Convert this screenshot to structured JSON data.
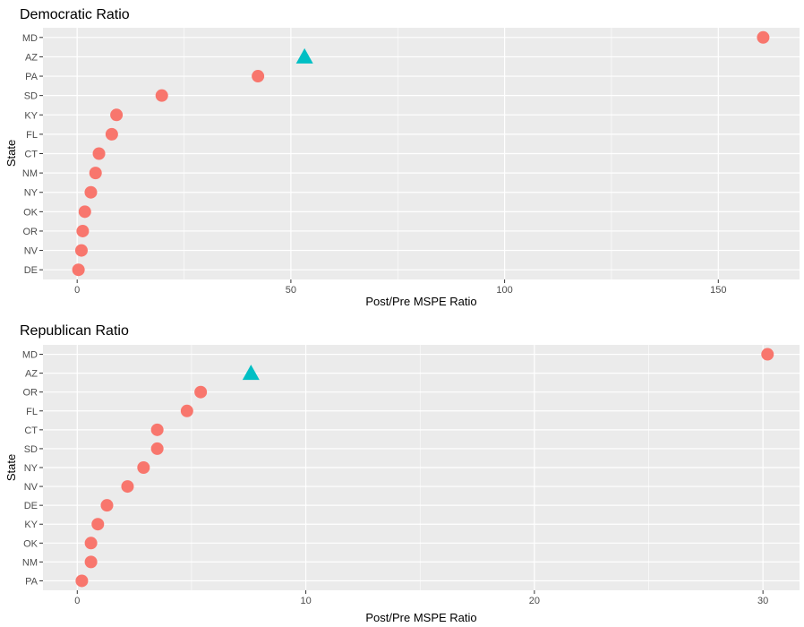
{
  "chart_data": [
    {
      "type": "scatter",
      "title": "Democratic Ratio",
      "xlabel": "Post/Pre MSPE Ratio",
      "ylabel": "State",
      "xlim": [
        -8,
        169
      ],
      "xticks": [
        0,
        50,
        100,
        150
      ],
      "grid": true,
      "legend": "none",
      "categories": [
        "MD",
        "AZ",
        "PA",
        "SD",
        "KY",
        "FL",
        "CT",
        "NM",
        "NY",
        "OK",
        "OR",
        "NV",
        "DE"
      ],
      "points": [
        {
          "state": "MD",
          "value": 160.5,
          "shape": "circle"
        },
        {
          "state": "AZ",
          "value": 53.2,
          "shape": "triangle"
        },
        {
          "state": "PA",
          "value": 42.3,
          "shape": "circle"
        },
        {
          "state": "SD",
          "value": 19.8,
          "shape": "circle"
        },
        {
          "state": "KY",
          "value": 9.2,
          "shape": "circle"
        },
        {
          "state": "FL",
          "value": 8.1,
          "shape": "circle"
        },
        {
          "state": "CT",
          "value": 5.1,
          "shape": "circle"
        },
        {
          "state": "NM",
          "value": 4.3,
          "shape": "circle"
        },
        {
          "state": "NY",
          "value": 3.2,
          "shape": "circle"
        },
        {
          "state": "OK",
          "value": 1.8,
          "shape": "circle"
        },
        {
          "state": "OR",
          "value": 1.3,
          "shape": "circle"
        },
        {
          "state": "NV",
          "value": 1.0,
          "shape": "circle"
        },
        {
          "state": "DE",
          "value": 0.3,
          "shape": "circle"
        }
      ]
    },
    {
      "type": "scatter",
      "title": "Republican Ratio",
      "xlabel": "Post/Pre MSPE Ratio",
      "ylabel": "State",
      "xlim": [
        -1.5,
        31.6
      ],
      "xticks": [
        0,
        10,
        20,
        30
      ],
      "grid": true,
      "legend": "none",
      "categories": [
        "MD",
        "AZ",
        "OR",
        "FL",
        "CT",
        "SD",
        "NY",
        "NV",
        "DE",
        "KY",
        "OK",
        "NM",
        "PA"
      ],
      "points": [
        {
          "state": "MD",
          "value": 30.2,
          "shape": "circle"
        },
        {
          "state": "AZ",
          "value": 7.6,
          "shape": "triangle"
        },
        {
          "state": "OR",
          "value": 5.4,
          "shape": "circle"
        },
        {
          "state": "FL",
          "value": 4.8,
          "shape": "circle"
        },
        {
          "state": "CT",
          "value": 3.5,
          "shape": "circle"
        },
        {
          "state": "SD",
          "value": 3.5,
          "shape": "circle"
        },
        {
          "state": "NY",
          "value": 2.9,
          "shape": "circle"
        },
        {
          "state": "NV",
          "value": 2.2,
          "shape": "circle"
        },
        {
          "state": "DE",
          "value": 1.3,
          "shape": "circle"
        },
        {
          "state": "KY",
          "value": 0.9,
          "shape": "circle"
        },
        {
          "state": "OK",
          "value": 0.6,
          "shape": "circle"
        },
        {
          "state": "NM",
          "value": 0.6,
          "shape": "circle"
        },
        {
          "state": "PA",
          "value": 0.2,
          "shape": "circle"
        }
      ]
    }
  ],
  "colors": {
    "panel_background": "#ebebeb",
    "grid_line": "#ffffff",
    "circle_point": "#f8766d",
    "triangle_point": "#00bfc4",
    "tick_text": "#4d4d4d",
    "tick_mark": "#333333"
  }
}
